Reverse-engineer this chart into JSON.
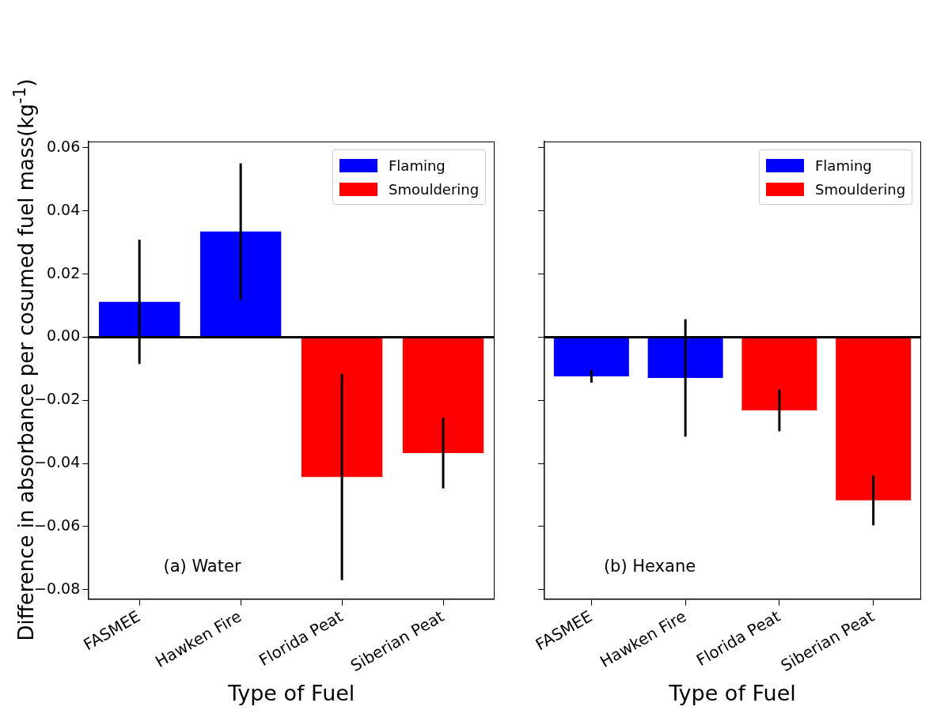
{
  "chart_data": [
    {
      "type": "bar",
      "xlabel": "Type of Fuel",
      "ylabel": "Difference in absorbance per cosumed fuel mass(kg$^{-1}$)",
      "annotations": [
        "(a) Water"
      ],
      "categories": [
        "FASMEE",
        "Hawken Fire",
        "Florida Peat",
        "Siberian Peat"
      ],
      "series": [
        {
          "name": "Flaming",
          "color": "#0000ff",
          "values": [
            0.0112,
            0.0335,
            null,
            null
          ],
          "errors": [
            0.0197,
            0.0216,
            null,
            null
          ]
        },
        {
          "name": "Smouldering",
          "color": "#ff0000",
          "values": [
            null,
            null,
            -0.0443,
            -0.0367
          ],
          "errors": [
            null,
            null,
            0.0327,
            0.0112
          ]
        }
      ],
      "ylim": [
        -0.083,
        0.062
      ],
      "yticks": [
        {
          "value": -0.08,
          "label": "−0.08"
        },
        {
          "value": -0.06,
          "label": "−0.06"
        },
        {
          "value": -0.04,
          "label": "−0.04"
        },
        {
          "value": -0.02,
          "label": "−0.02"
        },
        {
          "value": 0,
          "label": "0.00"
        },
        {
          "value": 0.02,
          "label": "0.02"
        },
        {
          "value": 0.04,
          "label": "0.04"
        },
        {
          "value": 0.06,
          "label": "0.06"
        }
      ],
      "ref_lines": [
        {
          "axis": "y",
          "value": 0,
          "color": "#000000"
        }
      ],
      "grid": false,
      "legend": "top right"
    },
    {
      "type": "bar",
      "xlabel": "Type of Fuel",
      "annotations": [
        "(b) Hexane"
      ],
      "categories": [
        "FASMEE",
        "Hawken Fire",
        "Florida Peat",
        "Siberian Peat"
      ],
      "series": [
        {
          "name": "Flaming",
          "color": "#0000ff",
          "values": [
            -0.0124,
            -0.0129,
            null,
            null
          ],
          "errors": [
            0.002,
            0.0186,
            null,
            null
          ]
        },
        {
          "name": "Smouldering",
          "color": "#ff0000",
          "values": [
            null,
            null,
            -0.0232,
            -0.0517
          ],
          "errors": [
            null,
            null,
            0.0066,
            0.0079
          ]
        }
      ],
      "ylim": [
        -0.083,
        0.062
      ],
      "yticks": [
        {
          "value": -0.08,
          "label": null
        },
        {
          "value": -0.06,
          "label": null
        },
        {
          "value": -0.04,
          "label": null
        },
        {
          "value": -0.02,
          "label": null
        },
        {
          "value": 0,
          "label": null
        },
        {
          "value": 0.02,
          "label": null
        },
        {
          "value": 0.04,
          "label": null
        },
        {
          "value": 0.06,
          "label": null
        }
      ],
      "tick_labels": "x",
      "ref_lines": [
        {
          "axis": "y",
          "value": 0,
          "color": "#000000"
        }
      ],
      "grid": false,
      "legend": "top right"
    }
  ]
}
